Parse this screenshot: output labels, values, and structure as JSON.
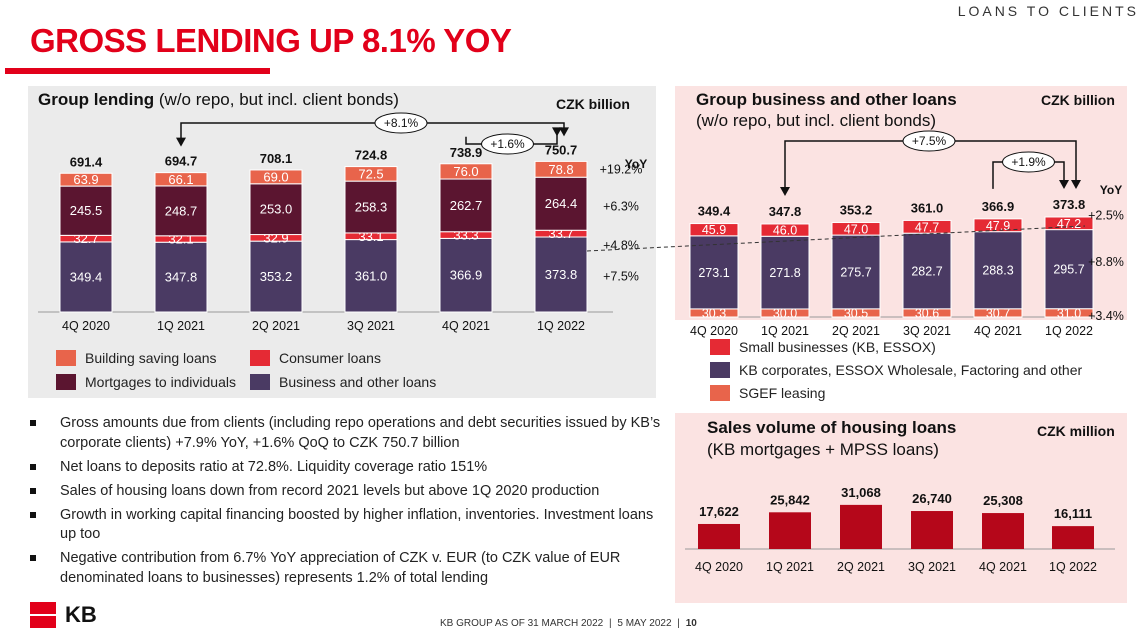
{
  "header": {
    "section": "LOANS TO CLIENTS",
    "title": "GROSS LENDING UP 8.1% YOY"
  },
  "colors": {
    "brand_red": "#e2001a",
    "building_saving": "#e8644b",
    "consumer": "#e52a34",
    "mortgage": "#5b1530",
    "business": "#4a3a63",
    "sales_bar": "#b5071a"
  },
  "left_panel": {
    "title_bold": "Group lending",
    "title_rest": " (w/o repo, but incl. client bonds)",
    "unit": "CZK billion",
    "yoy_header": "YoY",
    "yoy_total_label": "+8.1%",
    "qoq_total_label": "+1.6%",
    "legend": [
      {
        "label": "Building saving loans",
        "color": "#e8644b"
      },
      {
        "label": "Consumer loans",
        "color": "#e52a34"
      },
      {
        "label": "Mortgages to individuals",
        "color": "#5b1530"
      },
      {
        "label": "Business and other loans",
        "color": "#4a3a63"
      }
    ]
  },
  "right_top_panel": {
    "title_line1": "Group business and other loans",
    "title_line2": "(w/o repo, but incl. client bonds)",
    "unit": "CZK billion",
    "yoy_header": "YoY",
    "yoy_total_label": "+7.5%",
    "qoq_total_label": "+1.9%",
    "legend": [
      {
        "label": "Small businesses (KB, ESSOX)",
        "color": "#e52a34"
      },
      {
        "label": "KB corporates, ESSOX Wholesale, Factoring and other",
        "color": "#4a3a63"
      },
      {
        "label": "SGEF leasing",
        "color": "#e8644b"
      }
    ]
  },
  "sales_panel": {
    "title_line1": "Sales volume of housing loans",
    "title_line2": "(KB mortgages + MPSS loans)",
    "unit": "CZK million"
  },
  "chart_data": [
    {
      "type": "bar",
      "stacked": true,
      "title": "Group lending (w/o repo, but incl. client bonds)",
      "unit": "CZK billion",
      "categories": [
        "4Q 2020",
        "1Q 2021",
        "2Q 2021",
        "3Q 2021",
        "4Q 2021",
        "1Q 2022"
      ],
      "totals": [
        "691.4",
        "694.7",
        "708.1",
        "724.8",
        "738.9",
        "750.7"
      ],
      "series": [
        {
          "name": "Business and other loans",
          "values": [
            349.4,
            347.8,
            353.2,
            361.0,
            366.9,
            373.8
          ],
          "yoy": "+7.5%"
        },
        {
          "name": "Consumer loans",
          "values": [
            32.7,
            32.1,
            32.9,
            33.1,
            33.3,
            33.7
          ],
          "yoy": "+4.8%"
        },
        {
          "name": "Mortgages to individuals",
          "values": [
            245.5,
            248.7,
            253.0,
            258.3,
            262.7,
            264.4
          ],
          "yoy": "+6.3%"
        },
        {
          "name": "Building saving loans",
          "values": [
            63.9,
            66.1,
            69.0,
            72.5,
            76.0,
            78.8
          ],
          "yoy": "+19.2%"
        }
      ],
      "annotations": [
        "+8.1%",
        "+1.6%"
      ]
    },
    {
      "type": "bar",
      "stacked": true,
      "title": "Group business and other loans (w/o repo, but incl. client bonds)",
      "unit": "CZK billion",
      "categories": [
        "4Q 2020",
        "1Q 2021",
        "2Q 2021",
        "3Q 2021",
        "4Q 2021",
        "1Q 2022"
      ],
      "totals": [
        "349.4",
        "347.8",
        "353.2",
        "361.0",
        "366.9",
        "373.8"
      ],
      "series": [
        {
          "name": "SGEF leasing",
          "values": [
            30.3,
            30.0,
            30.5,
            30.6,
            30.7,
            31.0
          ],
          "yoy": "+3.4%"
        },
        {
          "name": "KB corporates, ESSOX Wholesale, Factoring and other",
          "values": [
            273.1,
            271.8,
            275.7,
            282.7,
            288.3,
            295.7
          ],
          "yoy": "+8.8%"
        },
        {
          "name": "Small businesses (KB, ESSOX)",
          "values": [
            45.9,
            46.0,
            47.0,
            47.7,
            47.9,
            47.2
          ],
          "yoy": "+2.5%"
        }
      ],
      "annotations": [
        "+7.5%",
        "+1.9%"
      ]
    },
    {
      "type": "bar",
      "title": "Sales volume of housing loans (KB mortgages + MPSS loans)",
      "unit": "CZK million",
      "categories": [
        "4Q 2020",
        "1Q 2021",
        "2Q 2021",
        "3Q 2021",
        "4Q 2021",
        "1Q 2022"
      ],
      "values": [
        17622,
        25842,
        31068,
        26740,
        25308,
        16111
      ],
      "value_labels": [
        "17,622",
        "25,842",
        "31,068",
        "26,740",
        "25,308",
        "16,111"
      ]
    }
  ],
  "bullets": [
    "Gross amounts due from clients (including repo operations and debt securities issued by KB’s corporate clients) +7.9% YoY, +1.6% QoQ to CZK 750.7 billion",
    "Net loans to deposits ratio at 72.8%. Liquidity coverage ratio 151%",
    "Sales of housing loans down from record 2021 levels but above 1Q 2020 production",
    "Growth in working capital financing boosted by higher inflation, inventories. Investment loans up too",
    "Negative contribution from 6.7% YoY appreciation of CZK v. EUR (to CZK value of EUR denominated loans to businesses) represents 1.2% of total lending"
  ],
  "footer": {
    "text": "KB GROUP AS OF 31 MARCH 2022",
    "date": "5 MAY 2022",
    "page": "10"
  },
  "logo_text": "KB"
}
